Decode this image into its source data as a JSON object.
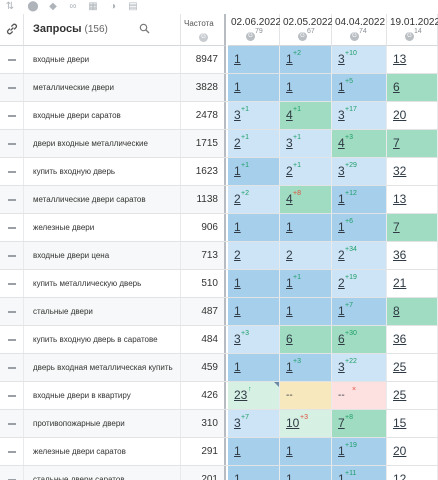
{
  "toolbar": {
    "icons": [
      "sort-icon",
      "toggle-icon",
      "cube-icon",
      "link-icon",
      "table-icon",
      "chart-icon",
      "export-icon"
    ]
  },
  "header": {
    "query_title": "Запросы",
    "query_count": "(156)",
    "freq_label": "Частота",
    "dates": [
      {
        "date": "02.06.2022",
        "g": "79"
      },
      {
        "date": "02.05.2022",
        "g": "67"
      },
      {
        "date": "04.04.2022",
        "g": "74"
      },
      {
        "date": "19.01.2022",
        "g": "14"
      }
    ]
  },
  "colors": {
    "blue": "#a6cfec",
    "light_blue": "#cce4f5",
    "green": "#9fdcc1",
    "yellow": "#f8e8bd",
    "pink": "#fde0e0",
    "white": "#ffffff"
  },
  "rows": [
    {
      "query": "входные двери",
      "freq": "8947",
      "pos": [
        {
          "v": "1",
          "c": "",
          "bg": "blue"
        },
        {
          "v": "1",
          "c": "+2",
          "bg": "blue"
        },
        {
          "v": "3",
          "c": "+10",
          "bg": "light_blue"
        },
        {
          "v": "13",
          "c": "",
          "bg": "white"
        }
      ]
    },
    {
      "query": "металлические двери",
      "freq": "3828",
      "pos": [
        {
          "v": "1",
          "c": "",
          "bg": "blue"
        },
        {
          "v": "1",
          "c": "",
          "bg": "blue"
        },
        {
          "v": "1",
          "c": "+5",
          "bg": "blue"
        },
        {
          "v": "6",
          "c": "",
          "bg": "green"
        }
      ]
    },
    {
      "query": "входные двери саратов",
      "freq": "2478",
      "pos": [
        {
          "v": "3",
          "c": "+1",
          "bg": "light_blue"
        },
        {
          "v": "4",
          "c": "+1",
          "bg": "green"
        },
        {
          "v": "3",
          "c": "+17",
          "bg": "light_blue"
        },
        {
          "v": "20",
          "c": "",
          "bg": "white"
        }
      ]
    },
    {
      "query": "двери входные металлические",
      "freq": "1715",
      "pos": [
        {
          "v": "2",
          "c": "+1",
          "bg": "light_blue"
        },
        {
          "v": "3",
          "c": "+1",
          "bg": "light_blue"
        },
        {
          "v": "4",
          "c": "+3",
          "bg": "green"
        },
        {
          "v": "7",
          "c": "",
          "bg": "green"
        }
      ]
    },
    {
      "query": "купить входную дверь",
      "freq": "1623",
      "pos": [
        {
          "v": "1",
          "c": "+1",
          "bg": "blue"
        },
        {
          "v": "2",
          "c": "+1",
          "bg": "light_blue"
        },
        {
          "v": "3",
          "c": "+29",
          "bg": "light_blue"
        },
        {
          "v": "32",
          "c": "",
          "bg": "white"
        }
      ]
    },
    {
      "query": "металлические двери саратов",
      "freq": "1138",
      "pos": [
        {
          "v": "2",
          "c": "+2",
          "bg": "light_blue"
        },
        {
          "v": "4",
          "c": "+8",
          "bg": "green",
          "red": true
        },
        {
          "v": "1",
          "c": "+12",
          "bg": "blue"
        },
        {
          "v": "13",
          "c": "",
          "bg": "white"
        }
      ]
    },
    {
      "query": "железные двери",
      "freq": "906",
      "pos": [
        {
          "v": "1",
          "c": "",
          "bg": "blue"
        },
        {
          "v": "1",
          "c": "",
          "bg": "blue"
        },
        {
          "v": "1",
          "c": "+6",
          "bg": "blue"
        },
        {
          "v": "7",
          "c": "",
          "bg": "green"
        }
      ]
    },
    {
      "query": "входные двери цена",
      "freq": "713",
      "pos": [
        {
          "v": "2",
          "c": "",
          "bg": "light_blue"
        },
        {
          "v": "2",
          "c": "",
          "bg": "light_blue"
        },
        {
          "v": "2",
          "c": "+34",
          "bg": "light_blue"
        },
        {
          "v": "36",
          "c": "",
          "bg": "white"
        }
      ]
    },
    {
      "query": "купить металлическую дверь",
      "freq": "510",
      "pos": [
        {
          "v": "1",
          "c": "",
          "bg": "blue"
        },
        {
          "v": "1",
          "c": "+1",
          "bg": "blue"
        },
        {
          "v": "2",
          "c": "+19",
          "bg": "light_blue"
        },
        {
          "v": "21",
          "c": "",
          "bg": "white"
        }
      ]
    },
    {
      "query": "стальные двери",
      "freq": "487",
      "pos": [
        {
          "v": "1",
          "c": "",
          "bg": "blue"
        },
        {
          "v": "1",
          "c": "",
          "bg": "blue"
        },
        {
          "v": "1",
          "c": "+7",
          "bg": "blue"
        },
        {
          "v": "8",
          "c": "",
          "bg": "green"
        }
      ]
    },
    {
      "query": "купить входную дверь в саратове",
      "freq": "484",
      "pos": [
        {
          "v": "3",
          "c": "+3",
          "bg": "light_blue"
        },
        {
          "v": "6",
          "c": "",
          "bg": "green"
        },
        {
          "v": "6",
          "c": "+30",
          "bg": "green"
        },
        {
          "v": "36",
          "c": "",
          "bg": "white"
        }
      ]
    },
    {
      "query": "дверь входная металлическая купить",
      "freq": "459",
      "pos": [
        {
          "v": "1",
          "c": "",
          "bg": "blue"
        },
        {
          "v": "1",
          "c": "+3",
          "bg": "blue"
        },
        {
          "v": "3",
          "c": "+22",
          "bg": "light_blue"
        },
        {
          "v": "25",
          "c": "",
          "bg": "white"
        }
      ]
    },
    {
      "query": "входные двери в квартиру",
      "freq": "426",
      "pos": [
        {
          "v": "23",
          "c": "↑",
          "bg": "white",
          "tint": "#d6f0e4",
          "corner": true
        },
        {
          "v": "--",
          "c": "",
          "bg": "yellow",
          "plain": true
        },
        {
          "v": "--",
          "c": "×",
          "bg": "pink",
          "plain": true,
          "red": true
        },
        {
          "v": "25",
          "c": "",
          "bg": "white"
        }
      ]
    },
    {
      "query": "противопожарные двери",
      "freq": "310",
      "pos": [
        {
          "v": "3",
          "c": "+7",
          "bg": "light_blue"
        },
        {
          "v": "10",
          "c": "+3",
          "bg": "white",
          "tint": "#d6f0e4",
          "red": true
        },
        {
          "v": "7",
          "c": "+8",
          "bg": "green"
        },
        {
          "v": "15",
          "c": "",
          "bg": "white"
        }
      ]
    },
    {
      "query": "железные двери саратов",
      "freq": "291",
      "pos": [
        {
          "v": "1",
          "c": "",
          "bg": "blue"
        },
        {
          "v": "1",
          "c": "",
          "bg": "blue"
        },
        {
          "v": "1",
          "c": "+19",
          "bg": "blue"
        },
        {
          "v": "20",
          "c": "",
          "bg": "white"
        }
      ]
    },
    {
      "query": "стальные двери саратов",
      "freq": "201",
      "pos": [
        {
          "v": "1",
          "c": "",
          "bg": "blue"
        },
        {
          "v": "1",
          "c": "",
          "bg": "blue"
        },
        {
          "v": "1",
          "c": "+11",
          "bg": "blue"
        },
        {
          "v": "12",
          "c": "",
          "bg": "white"
        }
      ]
    }
  ]
}
